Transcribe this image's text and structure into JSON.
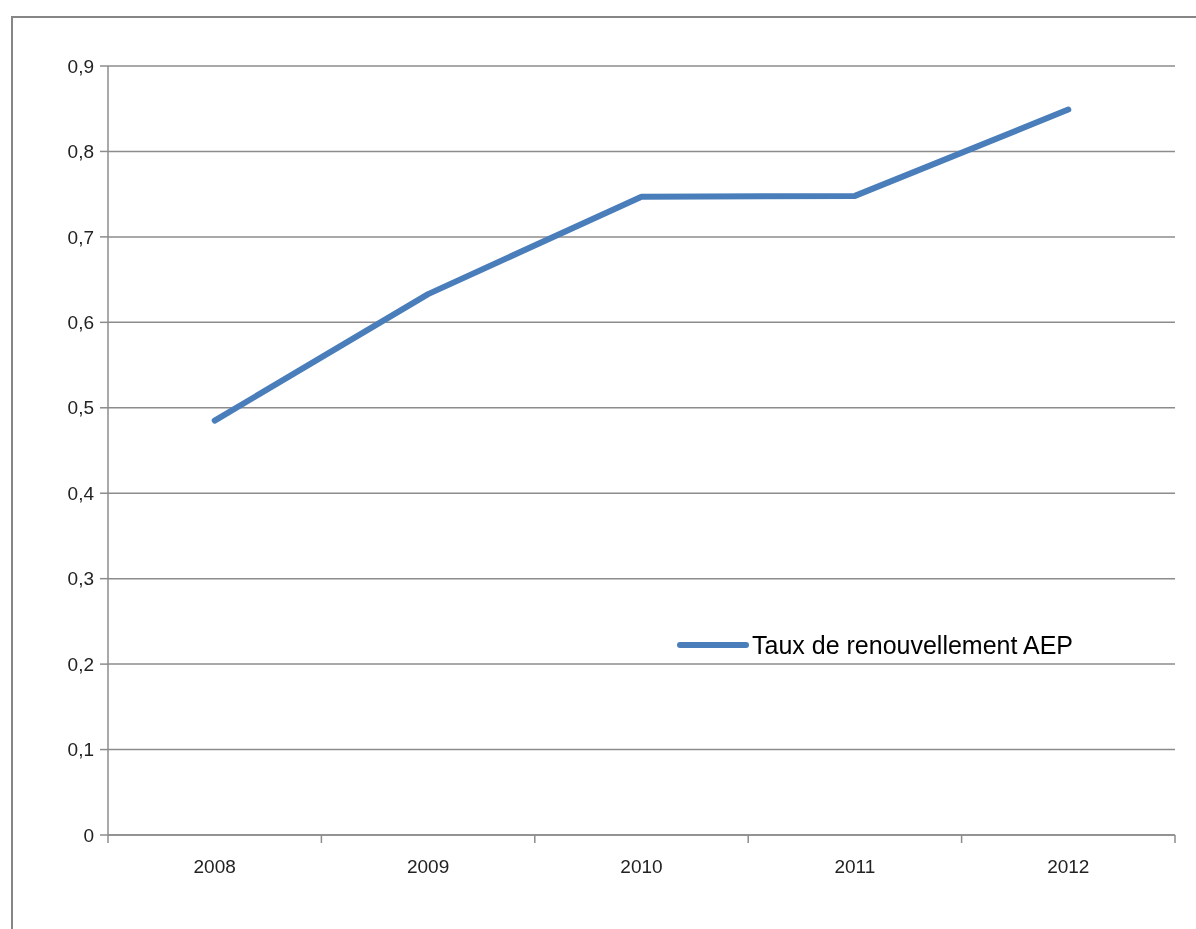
{
  "chart_data": {
    "type": "line",
    "categories": [
      "2008",
      "2009",
      "2010",
      "2011",
      "2012"
    ],
    "series": [
      {
        "name": "Taux de renouvellement AEP",
        "color": "#4a7ebb",
        "values": [
          0.485,
          0.633,
          0.747,
          0.748,
          0.849
        ]
      }
    ],
    "ylim": [
      0,
      0.9
    ],
    "yticks": [
      0,
      {
        "value": 0.1,
        "label": "0,1"
      },
      {
        "value": 0.2,
        "label": "0,2"
      },
      {
        "value": 0.3,
        "label": "0,3"
      },
      {
        "value": 0.4,
        "label": "0,4"
      },
      {
        "value": 0.5,
        "label": "0,5"
      },
      {
        "value": 0.6,
        "label": "0,6"
      },
      {
        "value": 0.7,
        "label": "0,7"
      },
      {
        "value": 0.8,
        "label": "0,8"
      },
      {
        "value": 0.9,
        "label": "0,9"
      }
    ],
    "grid": "y",
    "legend": "bottom right",
    "marker": "none",
    "line_style": "solid"
  }
}
